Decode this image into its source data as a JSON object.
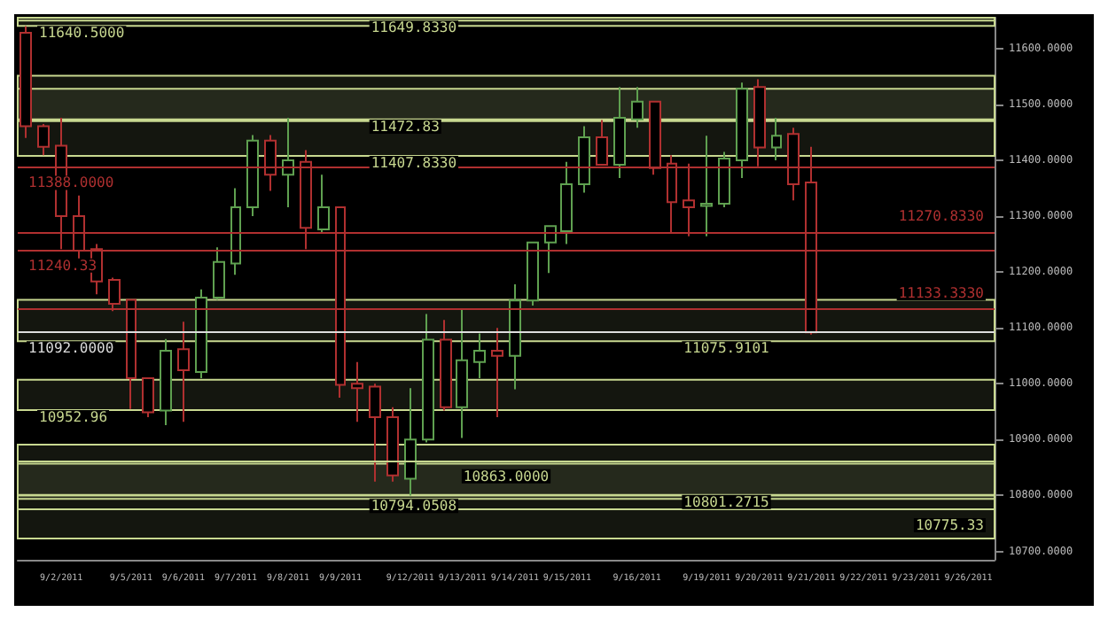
{
  "chart_data": {
    "type": "candlestick",
    "categories": [
      null,
      null,
      "9/2/2011",
      null,
      null,
      null,
      "9/5/2011",
      null,
      null,
      "9/6/2011",
      null,
      null,
      "9/7/2011",
      null,
      null,
      "9/8/2011",
      null,
      null,
      "9/9/2011",
      null,
      null,
      null,
      "9/12/2011",
      null,
      null,
      "9/13/2011",
      null,
      null,
      "9/14/2011",
      null,
      null,
      "9/15/2011",
      null,
      null,
      null,
      "9/16/2011",
      null,
      null,
      null,
      "9/19/2011",
      null,
      null,
      "9/20/2011",
      null,
      null,
      "9/21/2011",
      null,
      null,
      "9/22/2011",
      null,
      null,
      "9/23/2011",
      null,
      null,
      "9/26/2011",
      null
    ],
    "ohlc": [
      [
        11628,
        11640,
        11440,
        11461
      ],
      [
        11461,
        11465,
        11409,
        11424
      ],
      [
        11426,
        11476,
        11241,
        11300
      ],
      [
        11300,
        11337,
        11206,
        11238
      ],
      [
        11241,
        11250,
        11160,
        11183
      ],
      [
        11186,
        11190,
        11130,
        11143
      ],
      [
        11150,
        11150,
        10955,
        11010
      ],
      [
        11010,
        11010,
        10940,
        10949
      ],
      [
        10952,
        11080,
        10926,
        11059
      ],
      [
        11062,
        11111,
        10932,
        11024
      ],
      [
        11021,
        11169,
        11010,
        11154
      ],
      [
        11154,
        11244,
        11150,
        11218
      ],
      [
        11215,
        11350,
        11195,
        11316
      ],
      [
        11316,
        11445,
        11300,
        11435
      ],
      [
        11435,
        11445,
        11345,
        11374
      ],
      [
        11374,
        11476,
        11316,
        11400
      ],
      [
        11397,
        11418,
        11241,
        11279
      ],
      [
        11276,
        11374,
        11270,
        11316
      ],
      [
        11316,
        11316,
        10975,
        10998
      ],
      [
        11000,
        11039,
        10932,
        10992
      ],
      [
        10995,
        11000,
        10825,
        10940
      ],
      [
        10940,
        10958,
        10825,
        10836
      ],
      [
        10830,
        10992,
        10800,
        10900
      ],
      [
        10900,
        11125,
        10895,
        11079
      ],
      [
        11079,
        11114,
        10952,
        10958
      ],
      [
        10958,
        11134,
        10903,
        11042
      ],
      [
        11039,
        11090,
        11010,
        11059
      ],
      [
        11059,
        11100,
        10940,
        11050
      ],
      [
        11050,
        11178,
        10990,
        11149
      ],
      [
        11149,
        11253,
        11140,
        11253
      ],
      [
        11253,
        11282,
        11198,
        11282
      ],
      [
        11273,
        11397,
        11250,
        11357
      ],
      [
        11357,
        11461,
        11342,
        11441
      ],
      [
        11441,
        11472,
        11392,
        11392
      ],
      [
        11392,
        11531,
        11368,
        11476
      ],
      [
        11473,
        11531,
        11458,
        11505
      ],
      [
        11505,
        11505,
        11374,
        11386
      ],
      [
        11394,
        11409,
        11270,
        11325
      ],
      [
        11328,
        11394,
        11264,
        11316
      ],
      [
        11318,
        11444,
        11264,
        11322
      ],
      [
        11322,
        11415,
        11316,
        11403
      ],
      [
        11400,
        11539,
        11368,
        11528
      ],
      [
        11531,
        11545,
        11389,
        11423
      ],
      [
        11423,
        11476,
        11400,
        11444
      ],
      [
        11447,
        11458,
        11328,
        11357
      ],
      [
        11360,
        11424,
        11088,
        11092
      ],
      null,
      null,
      null,
      null,
      null,
      null,
      null,
      null,
      null,
      null
    ],
    "ylim": [
      10685,
      11655
    ],
    "yticks": [
      {
        "value": 10700,
        "label": "10700.0000"
      },
      {
        "value": 10800,
        "label": "10800.0000"
      },
      {
        "value": 10900,
        "label": "10900.0000"
      },
      {
        "value": 11000,
        "label": "11000.0000"
      },
      {
        "value": 11100,
        "label": "11100.0000"
      },
      {
        "value": 11200,
        "label": "11200.0000"
      },
      {
        "value": 11300,
        "label": "11300.0000"
      },
      {
        "value": 11400,
        "label": "11400.0000"
      },
      {
        "value": 11500,
        "label": "11500.0000"
      },
      {
        "value": 11600,
        "label": "11600.0000"
      }
    ],
    "grid": false,
    "ref_lines": [
      {
        "axis": "y",
        "value": 11388,
        "label": "11388.0000",
        "color": "#b03030"
      },
      {
        "axis": "y",
        "value": 11133.333,
        "label": "11133.3330",
        "color": "#b03030"
      },
      {
        "axis": "y",
        "value": 11270.833,
        "label": "11270.8330",
        "color": "#b03030"
      },
      {
        "axis": "y",
        "value": 11240.33,
        "label": "11240.33",
        "color": "#b03030"
      },
      {
        "axis": "y",
        "value": 10863,
        "label": "10863.0000",
        "color": "#c8d890"
      },
      {
        "axis": "y",
        "value": 10775.33,
        "label": "10775.33",
        "color": "#c8d890"
      },
      {
        "axis": "y",
        "value": 11092,
        "label": "11092.0000",
        "color": "#dddddd"
      }
    ],
    "bands": [
      {
        "axis": "y",
        "from": 11640.5,
        "to": 11655,
        "label": "11640.5000",
        "color": "#c8d890"
      },
      {
        "axis": "y",
        "from": 11649.833,
        "to": 11655,
        "label": "11649.8330",
        "color": "#c8d890"
      },
      {
        "axis": "y",
        "from": 11470,
        "to": 11551,
        "color": "#c8d890"
      },
      {
        "axis": "y",
        "from": 11407.833,
        "to": 11473,
        "label": "11407.8330",
        "color": "#c8d890"
      },
      {
        "axis": "y",
        "from": 11472.83,
        "to": 11528,
        "label": "11472.83",
        "color": "#c8d890"
      },
      {
        "axis": "y",
        "from": 11075.9101,
        "to": 11150,
        "label": "11075.9101",
        "color": "#c8d890"
      },
      {
        "axis": "y",
        "from": 10723,
        "to": 10800,
        "color": "#c8d890"
      },
      {
        "axis": "y",
        "from": 10794.0508,
        "to": 10857,
        "label": "10794.0508",
        "color": "#c8d890"
      },
      {
        "axis": "y",
        "from": 10801.2715,
        "to": 10891,
        "label": "10801.2715",
        "color": "#c8d890"
      },
      {
        "axis": "y",
        "from": 10952.96,
        "to": 11007,
        "label": "10952.96",
        "color": "#c8d890"
      }
    ]
  }
}
